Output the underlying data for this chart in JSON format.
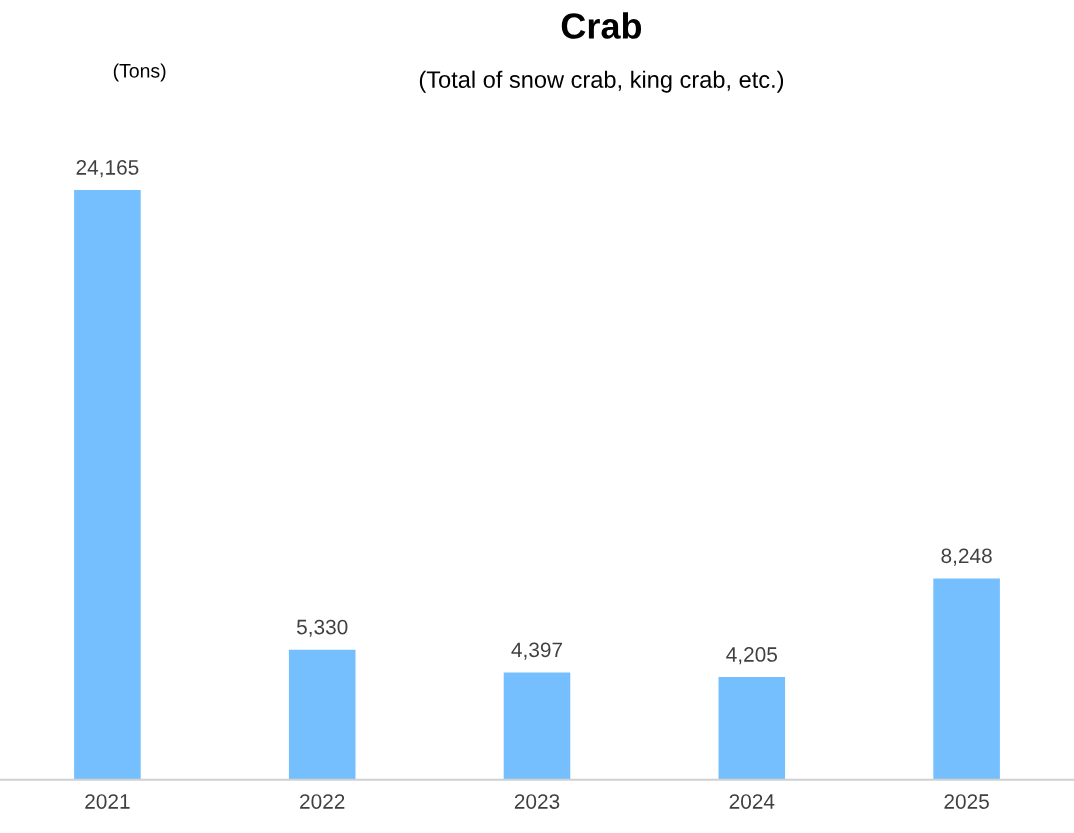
{
  "chart_data": {
    "type": "bar",
    "title": "Crab",
    "subtitle": "(Total of snow crab, king crab, etc.)",
    "annotations": [
      "(Tons)"
    ],
    "categories": [
      "2021",
      "2022",
      "2023",
      "2024",
      "2025"
    ],
    "values": [
      24165,
      5330,
      4397,
      4205,
      8248
    ],
    "value_labels": [
      "24,165",
      "5,330",
      "4,397",
      "4,205",
      "8,248"
    ],
    "color": "#75bfff",
    "grid": false,
    "legend": false,
    "tick_labels": "x"
  }
}
